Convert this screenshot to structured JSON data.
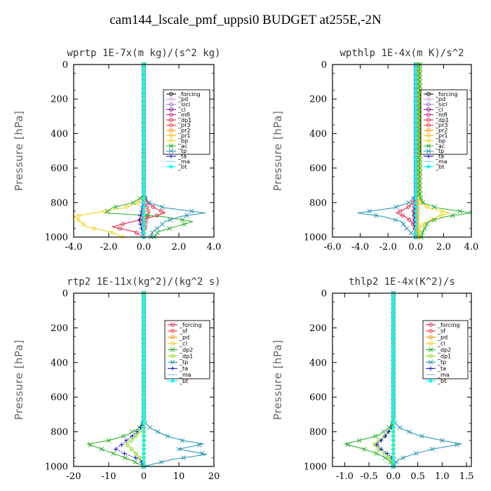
{
  "title": "cam144_lscale_pmf_uppsi0  BUDGET at255E,-2N",
  "chart_data": [
    {
      "type": "line",
      "title": "wprtp  1E-7x(m kg)/(s^2 kg)",
      "ylabel": "Pressure [hPa]",
      "xlim": [
        -4.0,
        4.0
      ],
      "ylim": [
        0,
        1000
      ],
      "xticks": [
        -4.0,
        -2.0,
        0.0,
        2.0,
        4.0
      ],
      "xtick_labels": [
        "-4.0",
        "-2.0",
        "0.0",
        "2.0",
        "4.0"
      ],
      "yticks": [
        0,
        200,
        400,
        600,
        800,
        1000
      ],
      "pressure": [
        760,
        800,
        830,
        860,
        880,
        910,
        940,
        970,
        1000
      ],
      "legend_position": "top-right",
      "series": [
        {
          "name": "_forcing",
          "color": "#000000",
          "marker": "o",
          "values": [
            0,
            0,
            0,
            0,
            0,
            0,
            0,
            0,
            0
          ]
        },
        {
          "name": "_pd",
          "color": "#c9a0dc",
          "marker": "o",
          "values": [
            0,
            0,
            0,
            0,
            0,
            0,
            0,
            0,
            0
          ]
        },
        {
          "name": "_sicl",
          "color": "#9370db",
          "marker": "o",
          "values": [
            0,
            0,
            0,
            0,
            0,
            0,
            0,
            0,
            0
          ]
        },
        {
          "name": "_cl",
          "color": "#800080",
          "marker": "o",
          "values": [
            0,
            0,
            0,
            -0.05,
            -0.05,
            -0.05,
            -0.05,
            0,
            0
          ]
        },
        {
          "name": "_mfl",
          "color": "#c71585",
          "marker": "o",
          "values": [
            0,
            0,
            0,
            0,
            0,
            0,
            0,
            0,
            0
          ]
        },
        {
          "name": "_dp1",
          "color": "#dc143c",
          "marker": "o",
          "values": [
            0,
            0.2,
            0.6,
            1.2,
            0.6,
            -0.6,
            -1.8,
            -0.5,
            0.0
          ]
        },
        {
          "name": "_pr3",
          "color": "#ff3030",
          "marker": "o",
          "values": [
            0,
            0,
            0.2,
            0.3,
            0.2,
            0.1,
            0.1,
            0,
            0
          ]
        },
        {
          "name": "_pr2",
          "color": "#ff8c00",
          "marker": "o",
          "values": [
            0,
            0,
            0,
            0,
            0,
            0,
            0,
            0,
            0
          ]
        },
        {
          "name": "_pr1",
          "color": "#ffb300",
          "marker": "o",
          "values": [
            0,
            0,
            0,
            0,
            0,
            0,
            0,
            0,
            0
          ]
        },
        {
          "name": "_bp",
          "color": "#f0d000",
          "marker": "o",
          "values": [
            0,
            -0.3,
            -1.1,
            -2.8,
            -4.0,
            -3.6,
            -3.3,
            -1.9,
            -1.2
          ]
        },
        {
          "name": "_ac",
          "color": "#22aa22",
          "marker": "x",
          "values": [
            0,
            -0.6,
            -1.8,
            -2.2,
            1.0,
            2.8,
            1.8,
            0.8,
            0.6
          ]
        },
        {
          "name": "_tp",
          "color": "#1e90b0",
          "marker": "x",
          "values": [
            0,
            0.3,
            1.2,
            3.5,
            2.1,
            1.2,
            0.9,
            0.5,
            0.4
          ]
        },
        {
          "name": "_ta",
          "color": "#0000cc",
          "marker": "+",
          "values": [
            0,
            -0.05,
            -0.1,
            -0.15,
            -0.2,
            -0.25,
            -0.15,
            -0.1,
            0
          ]
        },
        {
          "name": "_ma",
          "color": "#87ceeb",
          "marker": "-",
          "values": [
            0,
            0,
            0,
            0,
            0,
            0,
            0,
            0,
            0
          ]
        },
        {
          "name": "_bt",
          "color": "#00ffff",
          "marker": "diamond",
          "values": [
            0,
            0,
            0,
            0,
            0,
            0,
            0,
            0,
            0
          ]
        }
      ]
    },
    {
      "type": "line",
      "title": "wpthlp  1E-4x(m K)/s^2",
      "ylabel": "Pressure [hPa]",
      "xlim": [
        -6.0,
        4.0
      ],
      "ylim": [
        0,
        1000
      ],
      "xticks": [
        -6.0,
        -4.0,
        -2.0,
        0.0,
        2.0,
        4.0
      ],
      "xtick_labels": [
        "-6.0",
        "-4.0",
        "-2.0",
        "0.0",
        "2.0",
        "4.0"
      ],
      "yticks": [
        0,
        200,
        400,
        600,
        800,
        1000
      ],
      "pressure": [
        760,
        800,
        830,
        860,
        880,
        910,
        940,
        970,
        1000
      ],
      "legend_position": "top-right",
      "series": [
        {
          "name": "_forcing",
          "color": "#000000",
          "marker": "o",
          "values": [
            0,
            0,
            0,
            0,
            0,
            0,
            0,
            0,
            0
          ]
        },
        {
          "name": "_pd",
          "color": "#c9a0dc",
          "marker": "o",
          "values": [
            0,
            0,
            0,
            0,
            0,
            0,
            0,
            0,
            0
          ]
        },
        {
          "name": "_sicl",
          "color": "#9370db",
          "marker": "o",
          "values": [
            0,
            0,
            0,
            0,
            0,
            0,
            0,
            0,
            0
          ]
        },
        {
          "name": "_cl",
          "color": "#800080",
          "marker": "o",
          "values": [
            0,
            0,
            0,
            -0.1,
            -0.1,
            -0.1,
            -0.05,
            0,
            0
          ]
        },
        {
          "name": "_mfl",
          "color": "#c71585",
          "marker": "o",
          "values": [
            0,
            0,
            0,
            0,
            0,
            0,
            0,
            0,
            0
          ]
        },
        {
          "name": "_dp1",
          "color": "#dc143c",
          "marker": "o",
          "values": [
            0,
            -0.2,
            -0.6,
            -1.4,
            -0.8,
            -0.3,
            -0.1,
            0,
            0
          ]
        },
        {
          "name": "_pr3",
          "color": "#ff3030",
          "marker": "o",
          "values": [
            0,
            0,
            -0.1,
            -0.2,
            -0.1,
            0,
            0,
            0,
            0
          ]
        },
        {
          "name": "_pr2",
          "color": "#ff8c00",
          "marker": "o",
          "values": [
            0.05,
            0.05,
            0.05,
            0.05,
            0.05,
            0.05,
            0.05,
            0.05,
            0.05
          ]
        },
        {
          "name": "_pr1",
          "color": "#ffb300",
          "marker": "o",
          "values": [
            0.15,
            0.15,
            0.15,
            0.15,
            0.15,
            0.15,
            0.15,
            0.15,
            0.15
          ]
        },
        {
          "name": "_bp",
          "color": "#f0d000",
          "marker": "o",
          "values": [
            0.2,
            0.4,
            0.9,
            2.4,
            1.6,
            0.9,
            0.3,
            0.2,
            0.2
          ]
        },
        {
          "name": "_ac",
          "color": "#22aa22",
          "marker": "x",
          "values": [
            0.3,
            0.5,
            1.5,
            4.0,
            2.2,
            0.9,
            0.7,
            0.5,
            0.4
          ]
        },
        {
          "name": "_tp",
          "color": "#1e90b0",
          "marker": "x",
          "values": [
            0,
            -0.5,
            -1.6,
            -4.2,
            -2.4,
            -1.0,
            -0.8,
            -0.4,
            0
          ]
        },
        {
          "name": "_ta",
          "color": "#0000cc",
          "marker": "+",
          "values": [
            0,
            -0.05,
            -0.1,
            -0.1,
            -0.1,
            -0.05,
            0,
            0,
            0
          ]
        },
        {
          "name": "_ma",
          "color": "#87ceeb",
          "marker": "-",
          "values": [
            0,
            0,
            0,
            0,
            0,
            0,
            0,
            0,
            0
          ]
        },
        {
          "name": "_bt",
          "color": "#00ffff",
          "marker": "diamond",
          "values": [
            0,
            0,
            0,
            0,
            0,
            0,
            0,
            0,
            0
          ]
        }
      ]
    },
    {
      "type": "line",
      "title": "rtp2  1E-11x(kg^2)/(kg^2 s)",
      "ylabel": "Pressure [hPa]",
      "xlim": [
        -20,
        20
      ],
      "ylim": [
        0,
        1000
      ],
      "xticks": [
        -20,
        -10,
        0,
        10,
        20
      ],
      "xtick_labels": [
        "-20",
        "-10",
        "0",
        "10",
        "20"
      ],
      "yticks": [
        0,
        200,
        400,
        600,
        800,
        1000
      ],
      "pressure": [
        740,
        780,
        820,
        850,
        870,
        900,
        930,
        960,
        1000
      ],
      "legend_position": "top-right",
      "series": [
        {
          "name": "_forcing",
          "color": "#dc143c",
          "marker": "o",
          "values": [
            0,
            0,
            0,
            0,
            0,
            0,
            0,
            0,
            0
          ]
        },
        {
          "name": "_sf",
          "color": "#ff3030",
          "marker": "o",
          "values": [
            0,
            0,
            0,
            0,
            0,
            0,
            0,
            0,
            0
          ]
        },
        {
          "name": "_pd",
          "color": "#ff8c00",
          "marker": "o",
          "values": [
            0,
            0,
            0,
            0,
            0,
            0,
            0,
            0,
            0
          ]
        },
        {
          "name": "_cl",
          "color": "#f0d000",
          "marker": "o",
          "values": [
            0,
            0,
            0,
            0,
            0,
            0,
            0,
            0,
            0
          ]
        },
        {
          "name": "_dp2",
          "color": "#22aa22",
          "marker": "x",
          "values": [
            0,
            -1.5,
            -5,
            -10,
            -16,
            -12,
            -8,
            -4,
            0
          ]
        },
        {
          "name": "_dp1",
          "color": "#7ce000",
          "marker": "o",
          "values": [
            0,
            -0.5,
            -2,
            -3.5,
            -5,
            -3.5,
            -2,
            -1,
            0
          ]
        },
        {
          "name": "_tp",
          "color": "#1e90b0",
          "marker": "x",
          "values": [
            0,
            2,
            6,
            11,
            17,
            10,
            18,
            8,
            0
          ]
        },
        {
          "name": "_ta",
          "color": "#0000cc",
          "marker": "+",
          "values": [
            0,
            -1,
            -3,
            -5,
            -6,
            -8,
            -5,
            -1,
            0
          ]
        },
        {
          "name": "_ma",
          "color": "#87ceeb",
          "marker": "-",
          "values": [
            0,
            0,
            0,
            0,
            0,
            0,
            0,
            0,
            0
          ]
        },
        {
          "name": "_bt",
          "color": "#00ffff",
          "marker": "diamond",
          "values": [
            0,
            0,
            0,
            0,
            0,
            0,
            0,
            0,
            0
          ]
        }
      ]
    },
    {
      "type": "line",
      "title": "thlp2  1E-4x(K^2)/s",
      "ylabel": "Pressure [hPa]",
      "xlim": [
        -1.25,
        1.6
      ],
      "ylim": [
        0,
        1000
      ],
      "xticks": [
        -1.0,
        -0.5,
        0.0,
        0.5,
        1.0,
        1.5
      ],
      "xtick_labels": [
        "-1.0",
        "-0.5",
        "0.0",
        "0.5",
        "1.0",
        "1.5"
      ],
      "yticks": [
        0,
        200,
        400,
        600,
        800,
        1000
      ],
      "pressure": [
        740,
        780,
        820,
        850,
        870,
        900,
        930,
        960,
        1000
      ],
      "legend_position": "top-right",
      "series": [
        {
          "name": "_forcing",
          "color": "#dc143c",
          "marker": "o",
          "values": [
            0,
            0,
            0,
            0,
            0,
            0,
            0,
            0,
            0
          ]
        },
        {
          "name": "_sf",
          "color": "#ff3030",
          "marker": "o",
          "values": [
            0,
            0,
            0,
            0,
            0,
            0,
            0,
            0,
            0
          ]
        },
        {
          "name": "_pd",
          "color": "#ff8c00",
          "marker": "o",
          "values": [
            0,
            0,
            0,
            0,
            0,
            0,
            0,
            0,
            0
          ]
        },
        {
          "name": "_cl",
          "color": "#f0d000",
          "marker": "o",
          "values": [
            0,
            0,
            0,
            0,
            0,
            0,
            0,
            0,
            0
          ]
        },
        {
          "name": "_dp2",
          "color": "#22aa22",
          "marker": "x",
          "values": [
            0,
            -0.1,
            -0.3,
            -0.7,
            -1.0,
            -0.6,
            -0.3,
            -0.1,
            0
          ]
        },
        {
          "name": "_dp1",
          "color": "#7ce000",
          "marker": "o",
          "values": [
            0,
            -0.05,
            -0.15,
            -0.3,
            -0.4,
            -0.3,
            -0.15,
            -0.05,
            0
          ]
        },
        {
          "name": "_tp",
          "color": "#1e90b0",
          "marker": "x",
          "values": [
            0,
            0.15,
            0.5,
            1.0,
            1.4,
            0.8,
            0.4,
            0.1,
            0
          ]
        },
        {
          "name": "_ta",
          "color": "#0000cc",
          "marker": "+",
          "values": [
            0,
            -0.05,
            -0.15,
            -0.25,
            -0.35,
            -0.25,
            -0.1,
            0,
            0
          ]
        },
        {
          "name": "_ma",
          "color": "#87ceeb",
          "marker": "-",
          "values": [
            0,
            0,
            0,
            0,
            0,
            0,
            0,
            0,
            0
          ]
        },
        {
          "name": "_bt",
          "color": "#00ffff",
          "marker": "diamond",
          "values": [
            0,
            0,
            0,
            0,
            0,
            0,
            0,
            0,
            0
          ]
        }
      ]
    }
  ]
}
